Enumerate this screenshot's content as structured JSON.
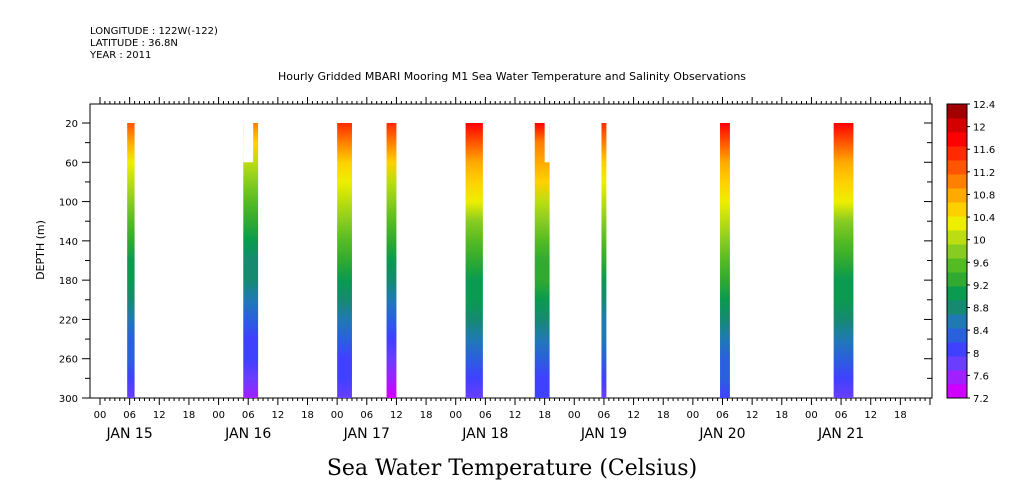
{
  "header": {
    "longitude": "LONGITUDE : 122W(-122)",
    "latitude": "LATITUDE : 36.8N",
    "year": "YEAR : 2011"
  },
  "chart_data": {
    "type": "heatmap",
    "title": "Hourly Gridded MBARI Mooring M1 Sea Water Temperature and Salinity Observations",
    "xlabel": "Sea Water Temperature (Celsius)",
    "ylabel": "DEPTH (m)",
    "x_range_hours": [
      0,
      168
    ],
    "ylim": [
      300,
      5
    ],
    "y_ticks": [
      20,
      60,
      100,
      140,
      180,
      220,
      260,
      300
    ],
    "x_tick_labels": [
      "00",
      "06",
      "12",
      "18",
      "00",
      "06",
      "12",
      "18",
      "00",
      "06",
      "12",
      "18",
      "00",
      "06",
      "12",
      "18",
      "00",
      "06",
      "12",
      "18",
      "00",
      "06",
      "12",
      "18",
      "00",
      "06",
      "12",
      "18"
    ],
    "x_tick_hours": [
      0,
      6,
      12,
      18,
      24,
      30,
      36,
      42,
      48,
      54,
      60,
      66,
      72,
      78,
      84,
      90,
      96,
      102,
      108,
      114,
      120,
      126,
      132,
      138,
      144,
      150,
      156,
      162
    ],
    "day_labels": [
      "JAN 15",
      "JAN 16",
      "JAN 17",
      "JAN 18",
      "JAN 19",
      "JAN 20",
      "JAN 21"
    ],
    "day_label_hours": [
      6,
      30,
      54,
      78,
      102,
      126,
      150
    ],
    "colorbar": {
      "min": 7.2,
      "max": 12.4,
      "labels": [
        "12.4",
        "12",
        "11.6",
        "11.2",
        "10.8",
        "10.4",
        "10",
        "9.6",
        "9.2",
        "8.8",
        "8.4",
        "8",
        "7.6",
        "7.2"
      ],
      "colors": [
        "#d000ff",
        "#a020ff",
        "#6a3dff",
        "#4040ff",
        "#2a60dd",
        "#1f7ab4",
        "#158a70",
        "#0a9a50",
        "#30aa30",
        "#55bb22",
        "#88cc22",
        "#bbdd11",
        "#eeee00",
        "#ffd000",
        "#ffaa00",
        "#ff8000",
        "#ff5500",
        "#ff2a00",
        "#ff0000",
        "#d40000",
        "#a00000"
      ]
    },
    "series": [
      {
        "start_hour": 5.5,
        "end_hour": 7.0,
        "top_depth": 20,
        "surface_temp": 11.2,
        "bottom_temp": 7.9
      },
      {
        "start_hour": 29.0,
        "end_hour": 32.0,
        "top_depth": 20,
        "surface_temp": 11.0,
        "bottom_temp": 7.6,
        "notch": {
          "end_hour": 31.0,
          "top_depth": 60
        }
      },
      {
        "start_hour": 48.0,
        "end_hour": 51.0,
        "top_depth": 20,
        "surface_temp": 11.5,
        "bottom_temp": 7.8
      },
      {
        "start_hour": 58.0,
        "end_hour": 60.0,
        "top_depth": 20,
        "surface_temp": 11.6,
        "bottom_temp": 7.3
      },
      {
        "start_hour": 74.0,
        "end_hour": 77.5,
        "top_depth": 20,
        "surface_temp": 11.8,
        "bottom_temp": 7.9
      },
      {
        "start_hour": 88.0,
        "end_hour": 91.0,
        "top_depth": 20,
        "surface_temp": 11.7,
        "bottom_temp": 8.0,
        "notch": {
          "start_hour": 90.0,
          "top_depth": 60
        }
      },
      {
        "start_hour": 101.5,
        "end_hour": 102.5,
        "top_depth": 20,
        "surface_temp": 11.6,
        "bottom_temp": 7.9
      },
      {
        "start_hour": 125.5,
        "end_hour": 127.5,
        "top_depth": 20,
        "surface_temp": 11.8,
        "bottom_temp": 8.0
      },
      {
        "start_hour": 148.5,
        "end_hour": 152.5,
        "top_depth": 20,
        "surface_temp": 11.8,
        "bottom_temp": 7.9
      }
    ]
  }
}
